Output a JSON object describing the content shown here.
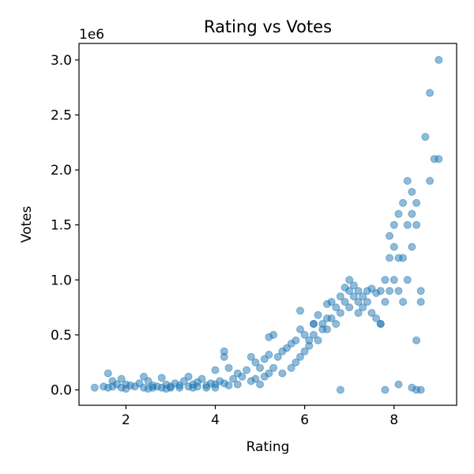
{
  "chart_data": {
    "type": "scatter",
    "title": "Rating vs Votes",
    "xlabel": "Rating",
    "ylabel": "Votes",
    "y_offset_label": "1e6",
    "xlim": [
      0.95,
      9.4
    ],
    "ylim": [
      -0.14,
      3.15
    ],
    "x_ticks": [
      2,
      4,
      6,
      8
    ],
    "x_tick_labels": [
      "2",
      "4",
      "6",
      "8"
    ],
    "y_ticks": [
      0.0,
      0.5,
      1.0,
      1.5,
      2.0,
      2.5,
      3.0
    ],
    "y_tick_labels": [
      "0.0",
      "0.5",
      "1.0",
      "1.5",
      "2.0",
      "2.5",
      "3.0"
    ],
    "grid": false,
    "marker_color": "#1f77b4",
    "marker_alpha": 0.5,
    "y_unit_scale": 1000000,
    "series": [
      {
        "x": [
          1.3,
          1.5,
          1.6,
          1.6,
          1.7,
          1.7,
          1.8,
          1.9,
          1.9,
          2.0,
          2.0,
          2.1,
          2.2,
          2.3,
          2.4,
          2.4,
          2.5,
          2.5,
          2.6,
          2.6,
          2.7,
          2.8,
          2.8,
          2.9,
          2.9,
          3.0,
          3.0,
          3.1,
          3.2,
          3.2,
          3.3,
          3.4,
          3.4,
          3.5,
          3.5,
          3.6,
          3.6,
          3.7,
          3.8,
          3.8,
          3.9,
          4.0,
          4.0,
          4.0,
          4.1,
          4.2,
          4.2,
          4.3,
          4.3,
          4.4,
          4.5,
          4.5,
          4.6,
          4.7,
          4.8,
          4.8,
          4.9,
          4.9,
          5.0,
          5.0,
          5.1,
          5.1,
          5.2,
          5.2,
          5.3,
          5.3,
          5.4,
          5.5,
          5.5,
          5.6,
          5.7,
          5.7,
          5.8,
          5.8,
          5.9,
          5.9,
          6.0,
          6.0,
          6.1,
          6.1,
          6.2,
          6.2,
          6.3,
          6.3,
          6.4,
          6.4,
          6.5,
          6.5,
          6.6,
          6.6,
          6.7,
          6.7,
          6.8,
          6.8,
          6.9,
          6.9,
          7.0,
          7.0,
          7.0,
          7.1,
          7.1,
          7.2,
          7.2,
          7.3,
          7.3,
          7.4,
          7.4,
          7.5,
          7.5,
          7.6,
          7.6,
          7.7,
          7.7,
          7.8,
          7.8,
          7.9,
          7.9,
          7.9,
          8.0,
          8.0,
          8.0,
          8.1,
          8.1,
          8.1,
          8.2,
          8.2,
          8.2,
          8.3,
          8.3,
          8.3,
          8.4,
          8.4,
          8.4,
          8.5,
          8.5,
          8.5,
          8.6,
          8.6,
          8.7,
          8.8,
          8.8,
          8.9,
          9.0,
          9.0,
          5.2,
          4.2,
          5.9,
          6.5,
          6.2,
          7.2,
          7.7,
          8.5,
          8.4,
          8.1,
          7.8,
          8.6,
          6.8
        ],
        "y": [
          0.02,
          0.03,
          0.15,
          0.02,
          0.08,
          0.03,
          0.05,
          0.1,
          0.02,
          0.05,
          0.01,
          0.04,
          0.03,
          0.06,
          0.12,
          0.02,
          0.08,
          0.01,
          0.04,
          0.02,
          0.03,
          0.11,
          0.02,
          0.05,
          0.01,
          0.03,
          0.02,
          0.06,
          0.02,
          0.04,
          0.08,
          0.12,
          0.03,
          0.05,
          0.02,
          0.07,
          0.03,
          0.1,
          0.04,
          0.02,
          0.06,
          0.18,
          0.05,
          0.02,
          0.08,
          0.35,
          0.06,
          0.2,
          0.04,
          0.1,
          0.15,
          0.05,
          0.12,
          0.18,
          0.3,
          0.08,
          0.25,
          0.1,
          0.2,
          0.05,
          0.28,
          0.12,
          0.32,
          0.15,
          0.5,
          0.2,
          0.3,
          0.35,
          0.15,
          0.38,
          0.42,
          0.2,
          0.45,
          0.25,
          0.55,
          0.3,
          0.5,
          0.35,
          0.45,
          0.4,
          0.6,
          0.5,
          0.68,
          0.45,
          0.55,
          0.6,
          0.78,
          0.55,
          0.8,
          0.65,
          0.75,
          0.6,
          0.85,
          0.7,
          0.93,
          0.8,
          1.0,
          0.9,
          0.75,
          0.95,
          0.85,
          0.9,
          0.8,
          0.85,
          0.75,
          0.9,
          0.8,
          0.92,
          0.7,
          0.88,
          0.65,
          0.9,
          0.6,
          1.0,
          0.8,
          1.2,
          1.4,
          0.9,
          1.3,
          1.5,
          1.0,
          1.6,
          1.2,
          0.9,
          1.7,
          1.2,
          0.8,
          1.9,
          1.5,
          1.0,
          1.6,
          1.3,
          1.8,
          1.7,
          1.5,
          0.45,
          0.9,
          0.8,
          2.3,
          1.9,
          2.7,
          2.1,
          3.0,
          2.1,
          0.48,
          0.3,
          0.72,
          0.65,
          0.6,
          0.7,
          0.6,
          0.0,
          0.02,
          0.05,
          0.0,
          0.0,
          0.0
        ]
      }
    ]
  }
}
